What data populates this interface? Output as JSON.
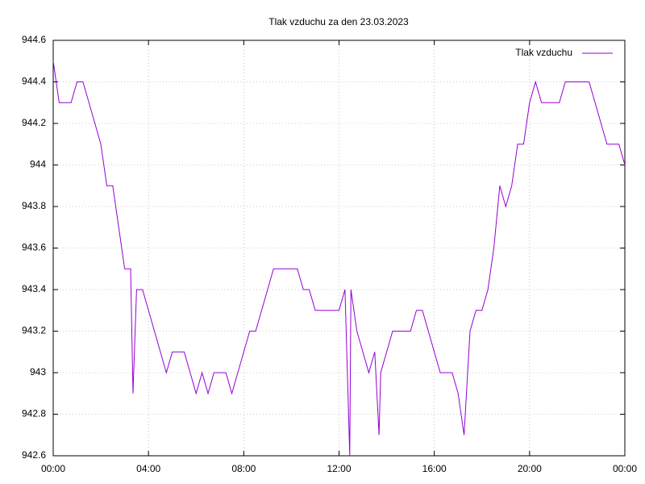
{
  "chart_data": {
    "type": "line",
    "title": "Tlak vzduchu za den 23.03.2023",
    "x": [
      0,
      0.25,
      0.5,
      0.75,
      1,
      1.25,
      1.5,
      1.75,
      2,
      2.25,
      2.5,
      2.75,
      3,
      3.25,
      3.35,
      3.5,
      3.75,
      4,
      4.25,
      4.5,
      4.75,
      5,
      5.25,
      5.5,
      5.75,
      6,
      6.25,
      6.5,
      6.75,
      7,
      7.25,
      7.5,
      7.75,
      8,
      8.25,
      8.5,
      8.75,
      9,
      9.25,
      9.5,
      9.75,
      10,
      10.25,
      10.5,
      10.75,
      11,
      11.25,
      11.5,
      11.75,
      12,
      12.25,
      12.45,
      12.5,
      12.75,
      13,
      13.25,
      13.5,
      13.68,
      13.75,
      14,
      14.25,
      14.5,
      14.75,
      15,
      15.25,
      15.5,
      15.75,
      16,
      16.25,
      16.5,
      16.75,
      17,
      17.25,
      17.5,
      17.75,
      18,
      18.25,
      18.5,
      18.75,
      19,
      19.25,
      19.5,
      19.75,
      20,
      20.25,
      20.5,
      20.75,
      21,
      21.25,
      21.5,
      21.75,
      22,
      22.25,
      22.5,
      22.75,
      23,
      23.25,
      23.5,
      23.75,
      24
    ],
    "series": [
      {
        "name": "Tlak vzduchu",
        "color": "#9400d3",
        "values": [
          944.5,
          944.3,
          944.3,
          944.3,
          944.4,
          944.4,
          944.3,
          944.2,
          944.1,
          943.9,
          943.9,
          943.7,
          943.5,
          943.5,
          942.9,
          943.4,
          943.4,
          943.3,
          943.2,
          943.1,
          943,
          943.1,
          943.1,
          943.1,
          943,
          942.9,
          943,
          942.9,
          943,
          943,
          943,
          942.9,
          943,
          943.1,
          943.2,
          943.2,
          943.3,
          943.4,
          943.5,
          943.5,
          943.5,
          943.5,
          943.5,
          943.4,
          943.4,
          943.3,
          943.3,
          943.3,
          943.3,
          943.3,
          943.4,
          942.6,
          943.4,
          943.2,
          943.1,
          943,
          943.1,
          942.7,
          943,
          943.1,
          943.2,
          943.2,
          943.2,
          943.2,
          943.3,
          943.3,
          943.2,
          943.1,
          943,
          943,
          943,
          942.9,
          942.7,
          943.2,
          943.3,
          943.3,
          943.4,
          943.6,
          943.9,
          943.8,
          943.9,
          944.1,
          944.1,
          944.3,
          944.4,
          944.3,
          944.3,
          944.3,
          944.3,
          944.4,
          944.4,
          944.4,
          944.4,
          944.4,
          944.3,
          944.2,
          944.1,
          944.1,
          944.1,
          944
        ]
      }
    ],
    "xlim": [
      0,
      24
    ],
    "xticks": [
      {
        "value": 0,
        "label": "00:00"
      },
      {
        "value": 4,
        "label": "04:00"
      },
      {
        "value": 8,
        "label": "08:00"
      },
      {
        "value": 12,
        "label": "12:00"
      },
      {
        "value": 16,
        "label": "16:00"
      },
      {
        "value": 20,
        "label": "20:00"
      },
      {
        "value": 24,
        "label": "00:00"
      }
    ],
    "ylim": [
      942.6,
      944.6
    ],
    "yticks": [
      942.6,
      942.8,
      943,
      943.2,
      943.4,
      943.6,
      943.8,
      944,
      944.2,
      944.4,
      944.6
    ],
    "grid": true,
    "legend": "top-right"
  }
}
